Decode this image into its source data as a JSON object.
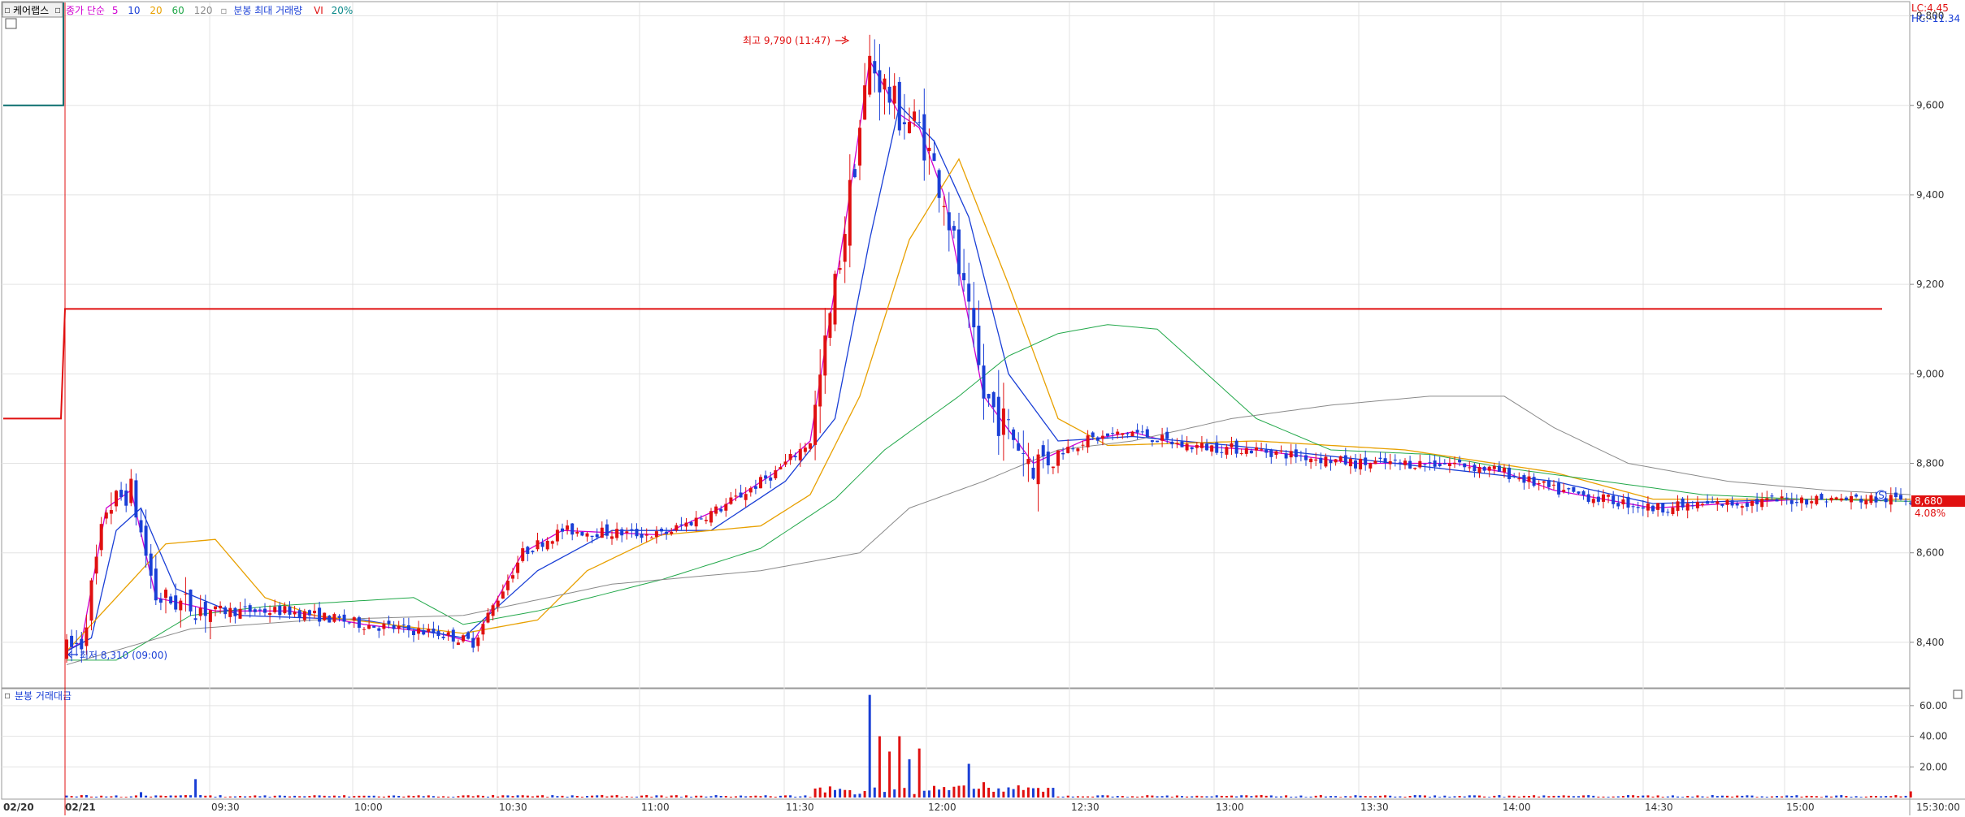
{
  "header": {
    "symbol": "케어랩스",
    "ma_label": "종가 단순",
    "ma_periods": [
      "5",
      "10",
      "20",
      "60",
      "120"
    ],
    "ma_colors": [
      "#d100d1",
      "#1a3fd6",
      "#e8a000",
      "#22a84a",
      "#8a8a8a"
    ],
    "volume_label": "분봉 최대 거래량",
    "vi_label": "VI",
    "vi_value": "20%"
  },
  "right_info": {
    "lc": "LC:4.45",
    "hc": "HC:-11.34"
  },
  "annotations": {
    "high": "최고 9,790 (11:47)",
    "low": "최저 8,310 (09:00)"
  },
  "price_tag": {
    "price": "8,680",
    "change": "4.08%"
  },
  "lower_panel": {
    "title": "분봉 거래대금"
  },
  "chart_data": {
    "type": "candlestick",
    "price_axis": {
      "ticks": [
        "9,800",
        "9,600",
        "9,400",
        "9,200",
        "9,000",
        "8,800",
        "8,600",
        "8,400"
      ],
      "range": [
        8300,
        9830
      ]
    },
    "volume_axis": {
      "ticks": [
        "60.00",
        "40.00",
        "20.00"
      ],
      "range": [
        0,
        70
      ]
    },
    "time_axis": [
      "02/20",
      "02/21",
      "09:30",
      "10:00",
      "10:30",
      "11:00",
      "11:30",
      "12:00",
      "12:30",
      "13:00",
      "13:30",
      "14:00",
      "14:30",
      "15:00",
      "15:30:00"
    ],
    "reference_lines": [
      {
        "name": "upper",
        "before": 9600,
        "after": 9145,
        "color": "#0a6e6e"
      },
      {
        "name": "vi",
        "before": 8900,
        "after": 9145,
        "color": "#e01010"
      }
    ],
    "ma_keypoints": {
      "ma5": [
        [
          0,
          8381
        ],
        [
          3,
          8400
        ],
        [
          8,
          8700
        ],
        [
          13,
          8740
        ],
        [
          18,
          8500
        ],
        [
          30,
          8470
        ],
        [
          45,
          8470
        ],
        [
          60,
          8440
        ],
        [
          75,
          8420
        ],
        [
          82,
          8400
        ],
        [
          92,
          8600
        ],
        [
          100,
          8650
        ],
        [
          120,
          8640
        ],
        [
          132,
          8700
        ],
        [
          143,
          8780
        ],
        [
          150,
          8850
        ],
        [
          157,
          9330
        ],
        [
          162,
          9700
        ],
        [
          168,
          9580
        ],
        [
          172,
          9550
        ],
        [
          177,
          9400
        ],
        [
          185,
          8950
        ],
        [
          195,
          8800
        ],
        [
          205,
          8850
        ],
        [
          215,
          8870
        ],
        [
          225,
          8840
        ],
        [
          240,
          8830
        ],
        [
          260,
          8800
        ],
        [
          280,
          8800
        ],
        [
          290,
          8780
        ],
        [
          300,
          8740
        ],
        [
          320,
          8700
        ],
        [
          350,
          8720
        ],
        [
          372,
          8720
        ]
      ],
      "ma10": [
        [
          0,
          8380
        ],
        [
          5,
          8410
        ],
        [
          10,
          8650
        ],
        [
          15,
          8700
        ],
        [
          22,
          8520
        ],
        [
          35,
          8460
        ],
        [
          60,
          8450
        ],
        [
          80,
          8410
        ],
        [
          95,
          8560
        ],
        [
          110,
          8650
        ],
        [
          130,
          8650
        ],
        [
          145,
          8760
        ],
        [
          155,
          8900
        ],
        [
          162,
          9300
        ],
        [
          168,
          9600
        ],
        [
          175,
          9520
        ],
        [
          182,
          9350
        ],
        [
          190,
          9000
        ],
        [
          200,
          8850
        ],
        [
          215,
          8860
        ],
        [
          235,
          8840
        ],
        [
          260,
          8810
        ],
        [
          300,
          8760
        ],
        [
          320,
          8710
        ],
        [
          350,
          8720
        ],
        [
          372,
          8720
        ]
      ],
      "ma20": [
        [
          0,
          8380
        ],
        [
          10,
          8500
        ],
        [
          20,
          8620
        ],
        [
          30,
          8630
        ],
        [
          40,
          8500
        ],
        [
          50,
          8460
        ],
        [
          80,
          8420
        ],
        [
          95,
          8450
        ],
        [
          105,
          8560
        ],
        [
          120,
          8640
        ],
        [
          140,
          8660
        ],
        [
          150,
          8730
        ],
        [
          160,
          8950
        ],
        [
          170,
          9300
        ],
        [
          180,
          9480
        ],
        [
          190,
          9200
        ],
        [
          200,
          8900
        ],
        [
          210,
          8840
        ],
        [
          240,
          8850
        ],
        [
          270,
          8830
        ],
        [
          300,
          8780
        ],
        [
          320,
          8720
        ],
        [
          350,
          8720
        ],
        [
          372,
          8720
        ]
      ],
      "ma60": [
        [
          0,
          8360
        ],
        [
          10,
          8360
        ],
        [
          25,
          8460
        ],
        [
          40,
          8480
        ],
        [
          55,
          8490
        ],
        [
          70,
          8500
        ],
        [
          80,
          8440
        ],
        [
          95,
          8470
        ],
        [
          120,
          8540
        ],
        [
          140,
          8610
        ],
        [
          155,
          8720
        ],
        [
          165,
          8830
        ],
        [
          180,
          8950
        ],
        [
          190,
          9040
        ],
        [
          200,
          9090
        ],
        [
          210,
          9110
        ],
        [
          220,
          9100
        ],
        [
          230,
          9000
        ],
        [
          240,
          8900
        ],
        [
          255,
          8830
        ],
        [
          275,
          8820
        ],
        [
          290,
          8790
        ],
        [
          310,
          8760
        ],
        [
          330,
          8730
        ],
        [
          350,
          8720
        ],
        [
          372,
          8715
        ]
      ],
      "ma120": [
        [
          0,
          8350
        ],
        [
          25,
          8430
        ],
        [
          50,
          8450
        ],
        [
          80,
          8460
        ],
        [
          110,
          8530
        ],
        [
          140,
          8560
        ],
        [
          160,
          8600
        ],
        [
          170,
          8700
        ],
        [
          185,
          8760
        ],
        [
          200,
          8830
        ],
        [
          215,
          8850
        ],
        [
          235,
          8900
        ],
        [
          255,
          8930
        ],
        [
          275,
          8950
        ],
        [
          290,
          8950
        ],
        [
          300,
          8880
        ],
        [
          315,
          8800
        ],
        [
          335,
          8760
        ],
        [
          355,
          8740
        ],
        [
          372,
          8730
        ]
      ]
    },
    "volume_spikes": [
      [
        15,
        3.5
      ],
      [
        26,
        12
      ],
      [
        162,
        67
      ],
      [
        164,
        40
      ],
      [
        166,
        30
      ],
      [
        168,
        40
      ],
      [
        170,
        25
      ],
      [
        172,
        32
      ],
      [
        182,
        22
      ],
      [
        185,
        10
      ],
      [
        372,
        4
      ]
    ]
  }
}
